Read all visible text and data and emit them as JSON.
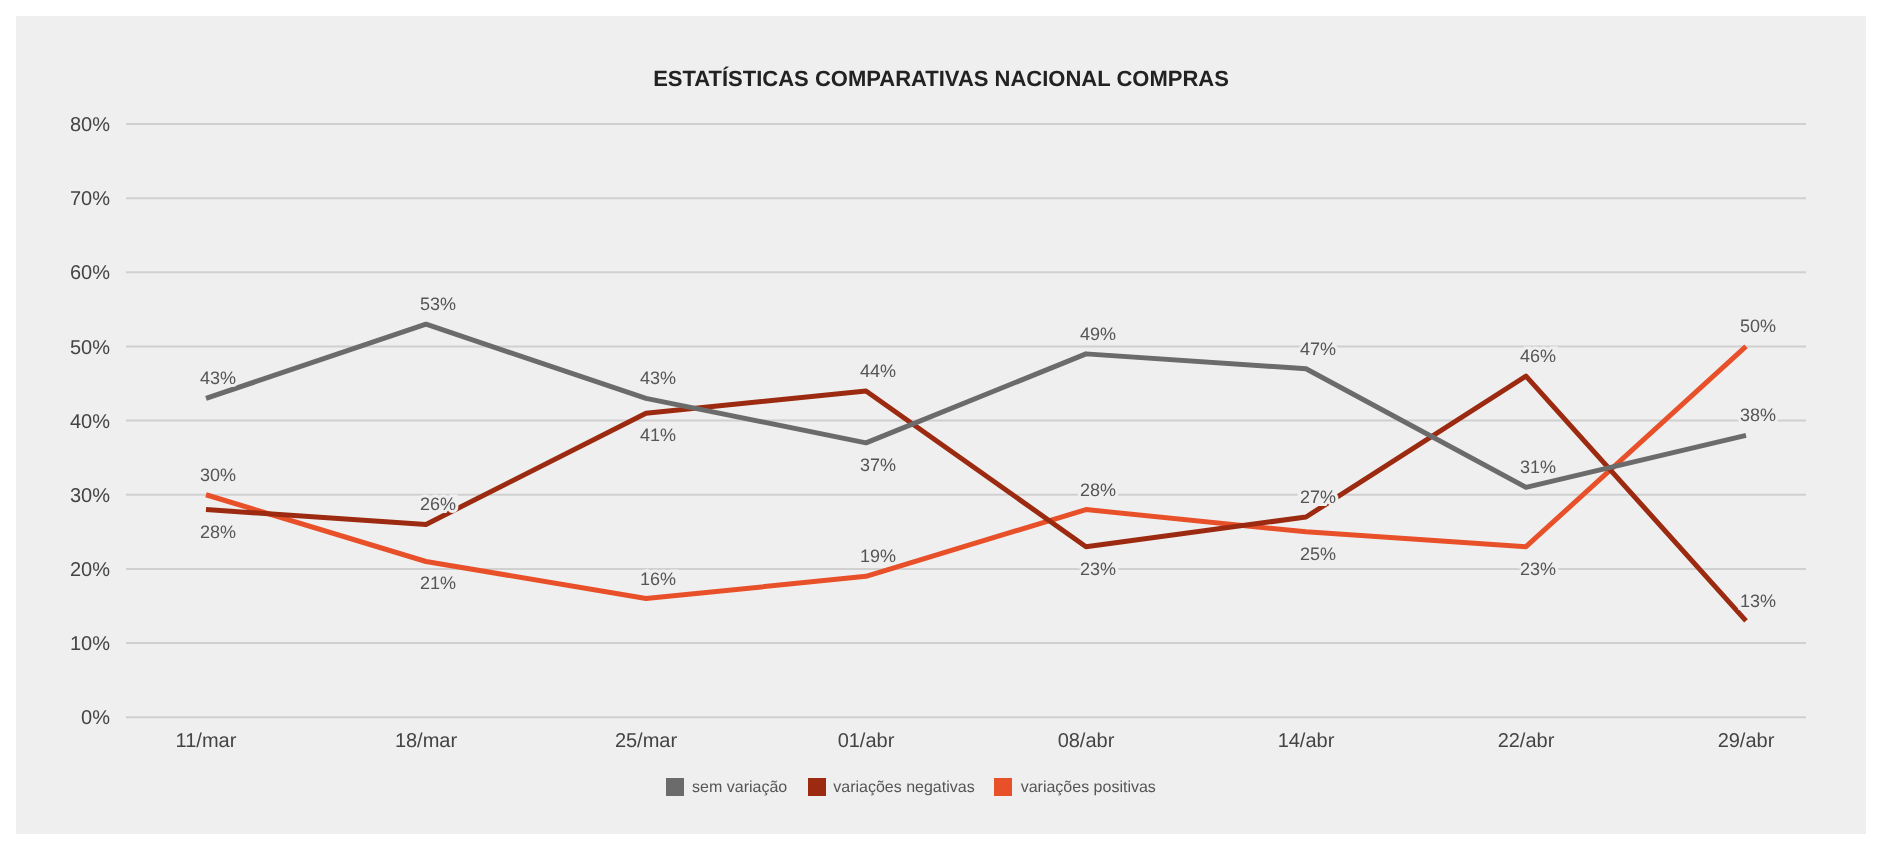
{
  "chart_data": {
    "type": "line",
    "title": "ESTATÍSTICAS COMPARATIVAS NACIONAL COMPRAS",
    "categories": [
      "11/mar",
      "18/mar",
      "25/mar",
      "01/abr",
      "08/abr",
      "14/abr",
      "22/abr",
      "29/abr"
    ],
    "series": [
      {
        "name": "variações positivas",
        "color": "#e8502a",
        "values": [
          30,
          21,
          16,
          19,
          28,
          25,
          23,
          50
        ],
        "value_labels": [
          "30%",
          "21%",
          "16%",
          "19%",
          "28%",
          "25%",
          "23%",
          "50%"
        ]
      },
      {
        "name": "variações negativas",
        "color": "#9b2a10",
        "values": [
          28,
          26,
          41,
          44,
          23,
          27,
          46,
          13
        ],
        "value_labels": [
          "28%",
          "26%",
          "41%",
          "44%",
          "23%",
          "27%",
          "46%",
          "13%"
        ]
      },
      {
        "name": "sem variação",
        "color": "#6b6b6b",
        "values": [
          43,
          53,
          43,
          37,
          49,
          47,
          31,
          38
        ],
        "value_labels": [
          "43%",
          "53%",
          "43%",
          "37%",
          "49%",
          "47%",
          "31%",
          "38%"
        ]
      }
    ],
    "ylim": [
      0,
      80
    ],
    "yticks": [
      {
        "value": 0,
        "label": "0%"
      },
      {
        "value": 10,
        "label": "10%"
      },
      {
        "value": 20,
        "label": "20%"
      },
      {
        "value": 30,
        "label": "30%"
      },
      {
        "value": 40,
        "label": "40%"
      },
      {
        "value": 50,
        "label": "50%"
      },
      {
        "value": 60,
        "label": "60%"
      },
      {
        "value": 70,
        "label": "70%"
      },
      {
        "value": 80,
        "label": "80%"
      }
    ],
    "grid": "y",
    "legend": "bottom",
    "marker": "none",
    "line_style": "solid"
  }
}
